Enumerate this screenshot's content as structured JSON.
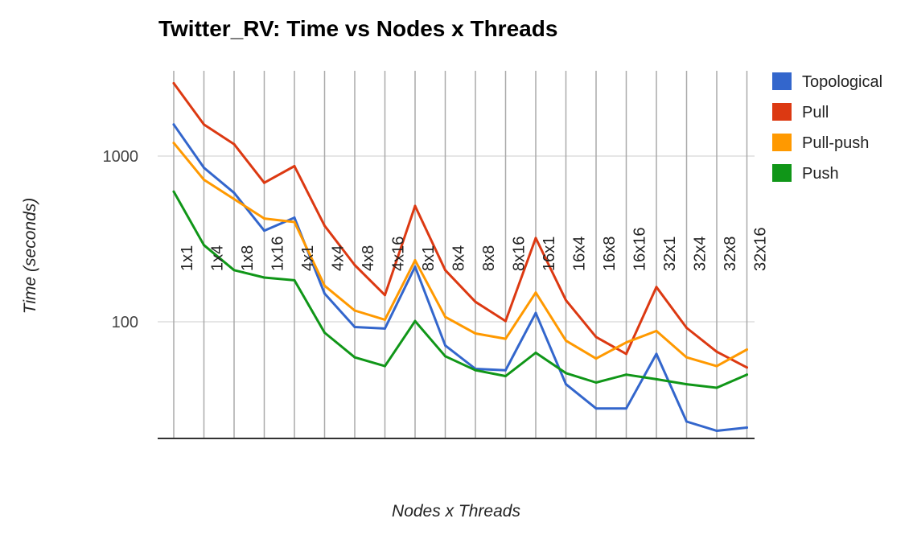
{
  "chart_data": {
    "type": "line",
    "title": "Twitter_RV: Time vs Nodes x Threads",
    "xlabel": "Nodes x Threads",
    "ylabel": "Time (seconds)",
    "y_scale": "log",
    "ylim": [
      21,
      3200
    ],
    "yticks": [
      100,
      1000
    ],
    "ytick_labels": [
      "100",
      "1000"
    ],
    "grid": true,
    "legend_position": "right",
    "categories": [
      "1x1",
      "1x4",
      "1x8",
      "1x16",
      "4x1",
      "4x4",
      "4x8",
      "4x16",
      "8x1",
      "8x4",
      "8x8",
      "8x16",
      "16x1",
      "16x4",
      "16x8",
      "16x16",
      "32x1",
      "32x4",
      "32x8",
      "32x16"
    ],
    "series": [
      {
        "name": "Topological",
        "color": "#3366cc",
        "values": [
          1550,
          850,
          600,
          355,
          425,
          148,
          93,
          91,
          215,
          72,
          52,
          51,
          113,
          42,
          30,
          30,
          64,
          25,
          22,
          23
        ]
      },
      {
        "name": "Pull",
        "color": "#dc3912",
        "values": [
          2750,
          1550,
          1180,
          690,
          870,
          380,
          220,
          145,
          500,
          205,
          132,
          101,
          320,
          135,
          81,
          64,
          162,
          92,
          66,
          53
        ]
      },
      {
        "name": "Pull-push",
        "color": "#ff9900",
        "values": [
          1200,
          720,
          550,
          420,
          400,
          165,
          117,
          103,
          235,
          107,
          85,
          79,
          150,
          77,
          60,
          75,
          88,
          61,
          54,
          68
        ]
      },
      {
        "name": "Push",
        "color": "#109618",
        "values": [
          610,
          290,
          205,
          185,
          178,
          86,
          61,
          54,
          101,
          62,
          51,
          47,
          65,
          49,
          43,
          48,
          45,
          42,
          40,
          48
        ]
      }
    ]
  }
}
